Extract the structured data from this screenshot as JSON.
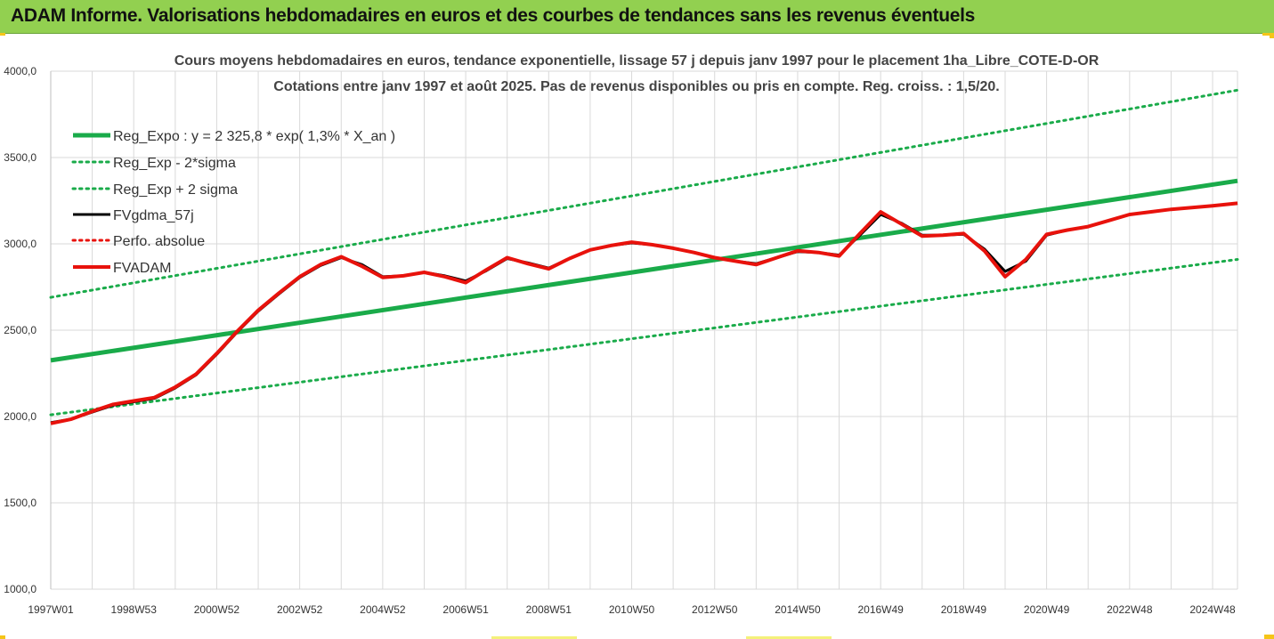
{
  "banner": {
    "title": "ADAM Informe. Valorisations hebdomadaires en euros et des courbes de tendances sans les revenus éventuels"
  },
  "colors": {
    "banner_bg": "#92d050",
    "trend_green": "#1aab4a",
    "fvgdma_black": "#000000",
    "fvadam_red": "#e8120c",
    "perfo_red": "#e8120c",
    "grid": "#d9d9d9"
  },
  "chart_data": {
    "type": "line",
    "title": "Cours moyens hebdomadaires en euros, tendance exponentielle, lissage 57 j depuis janv 1997 pour le placement 1ha_Libre_COTE-D-OR",
    "subtitle": "Cotations entre janv 1997 et août 2025.  Pas de revenus disponibles ou pris en compte. Reg. croiss. : 1,5/20.",
    "xlabel": "",
    "ylabel": "",
    "ylim": [
      1000,
      4000
    ],
    "yticks": [
      "1000,0",
      "1500,0",
      "2000,0",
      "2500,0",
      "3000,0",
      "3500,0",
      "4000,0"
    ],
    "xlim": [
      1997.0,
      2025.6
    ],
    "xticks": [
      {
        "x": 1997.0,
        "label": "1997W01"
      },
      {
        "x": 1999.0,
        "label": "1998W53"
      },
      {
        "x": 2001.0,
        "label": "2000W52"
      },
      {
        "x": 2003.0,
        "label": "2002W52"
      },
      {
        "x": 2005.0,
        "label": "2004W52"
      },
      {
        "x": 2007.0,
        "label": "2006W51"
      },
      {
        "x": 2009.0,
        "label": "2008W51"
      },
      {
        "x": 2011.0,
        "label": "2010W50"
      },
      {
        "x": 2013.0,
        "label": "2012W50"
      },
      {
        "x": 2015.0,
        "label": "2014W50"
      },
      {
        "x": 2017.0,
        "label": "2016W49"
      },
      {
        "x": 2019.0,
        "label": "2018W49"
      },
      {
        "x": 2021.0,
        "label": "2020W49"
      },
      {
        "x": 2023.0,
        "label": "2022W48"
      },
      {
        "x": 2025.0,
        "label": "2024W48"
      }
    ],
    "grid": true,
    "legend_position": "top-left",
    "series": [
      {
        "name": "Reg_Expo : y = 2 325,8 * exp( 1,3% *  X_an )",
        "style": "solid-thick",
        "color": "#1aab4a",
        "x": [
          1997.0,
          2025.6
        ],
        "y": [
          2325,
          3365
        ]
      },
      {
        "name": "Reg_Exp - 2*sigma",
        "style": "dotted",
        "color": "#1aab4a",
        "x": [
          1997.0,
          2025.6
        ],
        "y": [
          2010,
          2910
        ]
      },
      {
        "name": "Reg_Exp + 2 sigma",
        "style": "dotted",
        "color": "#1aab4a",
        "x": [
          1997.0,
          2025.6
        ],
        "y": [
          2690,
          3890
        ]
      },
      {
        "name": "FVgdma_57j",
        "style": "solid",
        "color": "#000000",
        "x": [
          1997.0,
          1997.5,
          1998.0,
          1998.5,
          1999.0,
          1999.5,
          2000.0,
          2000.5,
          2001.0,
          2001.5,
          2002.0,
          2002.5,
          2003.0,
          2003.5,
          2004.0,
          2004.5,
          2005.0,
          2005.5,
          2006.0,
          2006.5,
          2007.0,
          2007.5,
          2008.0,
          2008.5,
          2009.0,
          2009.5,
          2010.0,
          2010.5,
          2011.0,
          2011.5,
          2012.0,
          2012.5,
          2013.0,
          2013.5,
          2014.0,
          2014.5,
          2015.0,
          2015.5,
          2016.0,
          2016.5,
          2017.0,
          2017.5,
          2018.0,
          2018.5,
          2019.0,
          2019.5,
          2020.0,
          2020.5,
          2021.0,
          2021.5,
          2022.0,
          2022.5,
          2023.0,
          2023.5,
          2024.0,
          2024.5,
          2025.0,
          2025.6
        ],
        "y": [
          1965,
          1985,
          2025,
          2065,
          2085,
          2105,
          2165,
          2240,
          2360,
          2490,
          2610,
          2710,
          2805,
          2875,
          2920,
          2880,
          2810,
          2815,
          2835,
          2815,
          2785,
          2845,
          2915,
          2890,
          2860,
          2915,
          2965,
          2990,
          3005,
          2995,
          2975,
          2950,
          2920,
          2900,
          2885,
          2920,
          2955,
          2950,
          2935,
          3050,
          3170,
          3120,
          3050,
          3050,
          3055,
          2970,
          2840,
          2900,
          3050,
          3080,
          3100,
          3135,
          3170,
          3185,
          3200,
          3210,
          3220,
          3235
        ]
      },
      {
        "name": "Perfo. absolue",
        "style": "dotted",
        "color": "#e8120c",
        "x": [],
        "y": []
      },
      {
        "name": "FVADAM",
        "style": "solid-thick",
        "color": "#e8120c",
        "x": [
          1997.0,
          1997.5,
          1998.0,
          1998.5,
          1999.0,
          1999.5,
          2000.0,
          2000.5,
          2001.0,
          2001.5,
          2002.0,
          2002.5,
          2003.0,
          2003.5,
          2004.0,
          2004.5,
          2005.0,
          2005.5,
          2006.0,
          2006.5,
          2007.0,
          2007.5,
          2008.0,
          2008.5,
          2009.0,
          2009.5,
          2010.0,
          2010.5,
          2011.0,
          2011.5,
          2012.0,
          2012.5,
          2013.0,
          2013.5,
          2014.0,
          2014.5,
          2015.0,
          2015.5,
          2016.0,
          2016.5,
          2017.0,
          2017.5,
          2018.0,
          2018.5,
          2019.0,
          2019.5,
          2020.0,
          2020.5,
          2021.0,
          2021.5,
          2022.0,
          2022.5,
          2023.0,
          2023.5,
          2024.0,
          2024.5,
          2025.0,
          2025.6
        ],
        "y": [
          1960,
          1985,
          2030,
          2070,
          2090,
          2110,
          2170,
          2245,
          2365,
          2495,
          2615,
          2715,
          2810,
          2880,
          2925,
          2870,
          2805,
          2815,
          2835,
          2810,
          2775,
          2850,
          2920,
          2885,
          2855,
          2915,
          2965,
          2990,
          3010,
          2995,
          2975,
          2950,
          2920,
          2900,
          2880,
          2920,
          2960,
          2950,
          2930,
          3060,
          3185,
          3115,
          3045,
          3050,
          3060,
          2960,
          2810,
          2910,
          3055,
          3080,
          3100,
          3135,
          3170,
          3185,
          3200,
          3210,
          3220,
          3235
        ]
      }
    ]
  }
}
